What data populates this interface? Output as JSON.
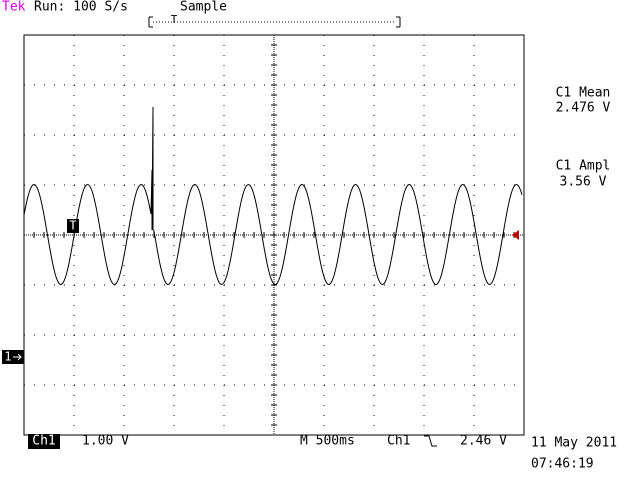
{
  "header": {
    "brand": "Tek",
    "status": "Run: 100 S/s",
    "mode": "Sample",
    "record_marker": "T"
  },
  "measurements": [
    {
      "label": "C1 Mean",
      "value": "2.476 V"
    },
    {
      "label": "C1 Ampl",
      "value": "3.56 V"
    }
  ],
  "markers": {
    "trigger": "T",
    "channel": "1"
  },
  "footer": {
    "channel": "Ch1",
    "scale": "1.00 V",
    "timebase": "M 500ms",
    "trigger_source": "Ch1",
    "trigger_level": "2.46 V",
    "date": "11 May 2011",
    "time": "07:46:19"
  }
}
